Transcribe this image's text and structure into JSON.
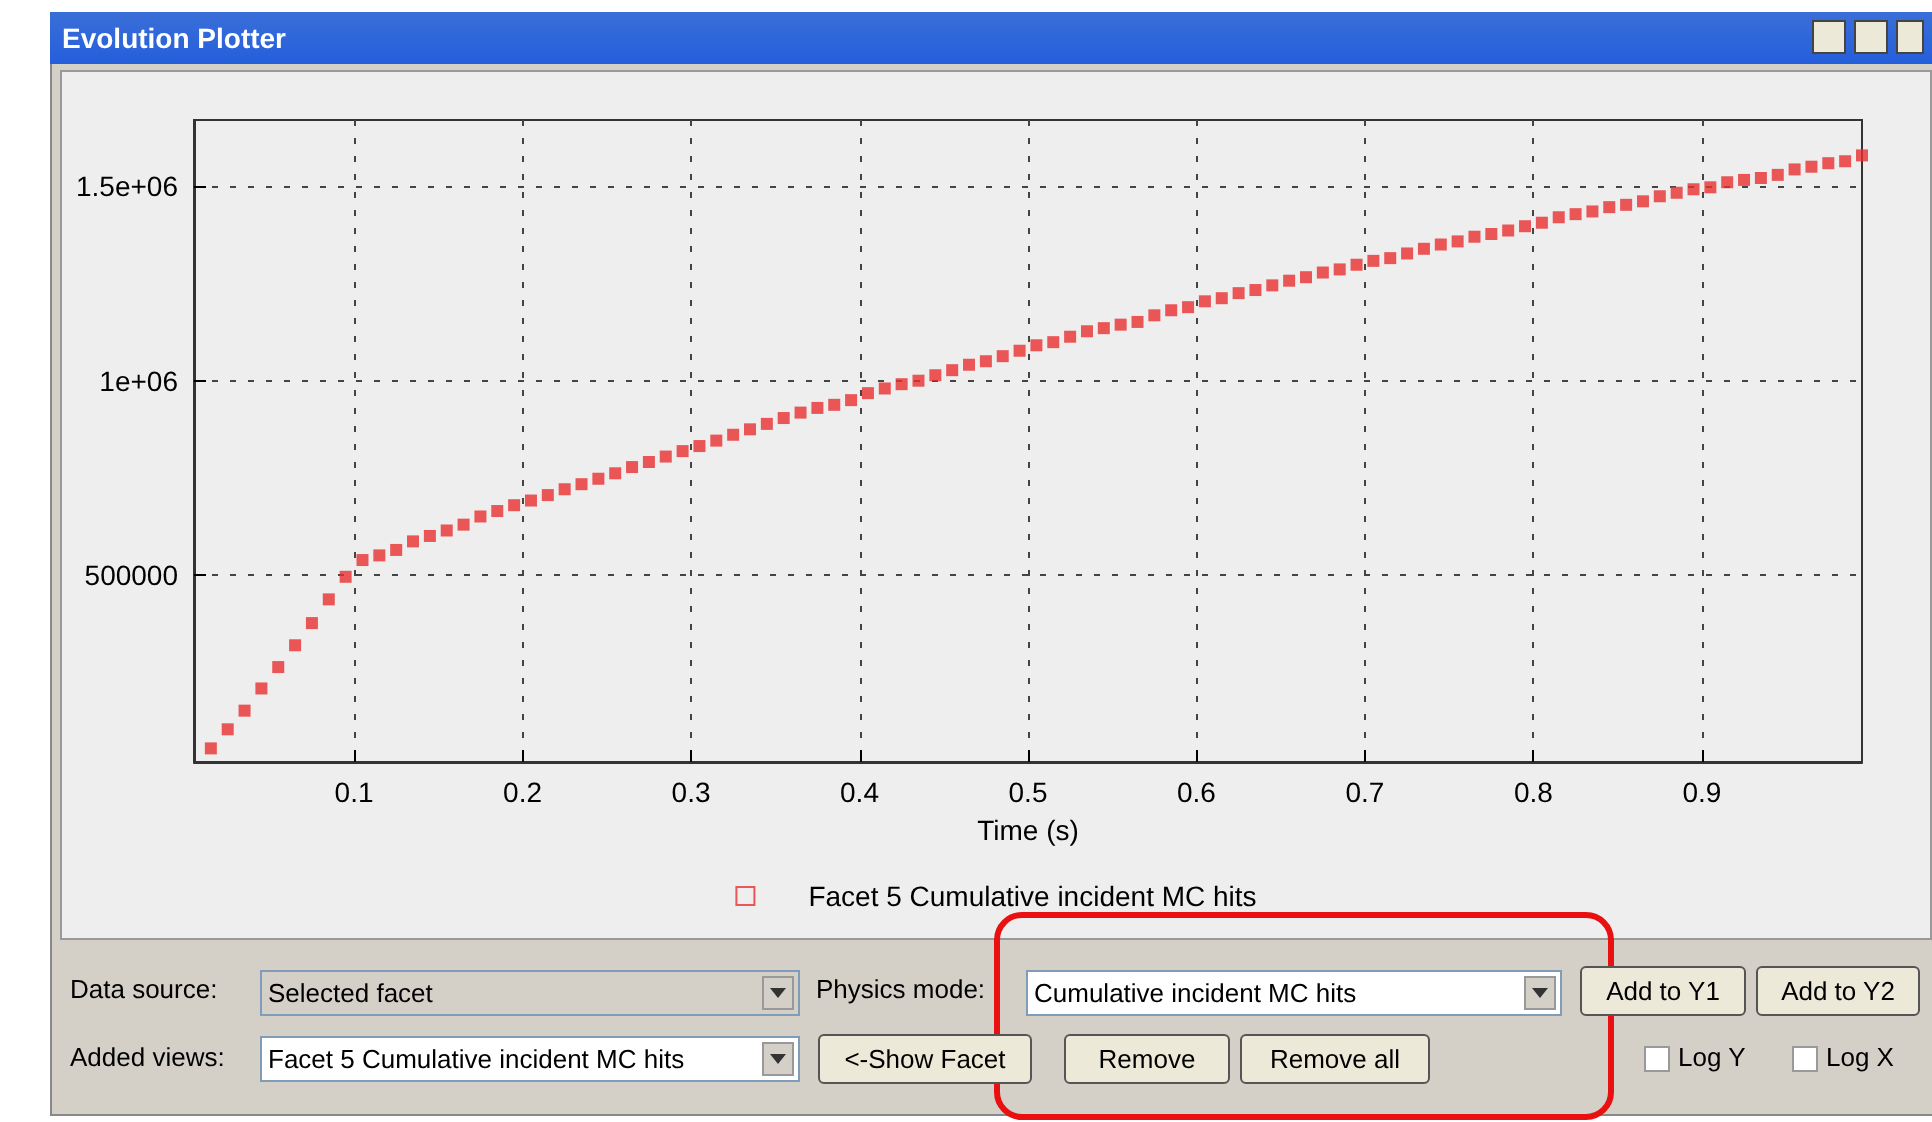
{
  "chart_data": {
    "type": "scatter",
    "title": "Evolution Plotter",
    "xlabel": "Time (s)",
    "x": [
      0.015,
      0.025,
      0.035,
      0.045,
      0.055,
      0.065,
      0.075,
      0.085,
      0.095,
      0.105,
      0.115,
      0.125,
      0.135,
      0.145,
      0.155,
      0.165,
      0.175,
      0.185,
      0.195,
      0.205,
      0.215,
      0.225,
      0.235,
      0.245,
      0.255,
      0.265,
      0.275,
      0.285,
      0.295,
      0.305,
      0.315,
      0.325,
      0.335,
      0.345,
      0.355,
      0.365,
      0.375,
      0.385,
      0.395,
      0.405,
      0.415,
      0.425,
      0.435,
      0.445,
      0.455,
      0.465,
      0.475,
      0.485,
      0.495,
      0.505,
      0.515,
      0.525,
      0.535,
      0.545,
      0.555,
      0.565,
      0.575,
      0.585,
      0.595,
      0.605,
      0.615,
      0.625,
      0.635,
      0.645,
      0.655,
      0.665,
      0.675,
      0.685,
      0.695,
      0.705,
      0.715,
      0.725,
      0.735,
      0.745,
      0.755,
      0.765,
      0.775,
      0.785,
      0.795,
      0.805,
      0.815,
      0.825,
      0.835,
      0.845,
      0.855,
      0.865,
      0.875,
      0.885,
      0.895,
      0.905,
      0.915,
      0.925,
      0.935,
      0.945,
      0.955,
      0.965,
      0.975,
      0.985,
      0.995
    ],
    "series": [
      {
        "name": "Facet 5 Cumulative incident MC hits",
        "color": "#e83030",
        "values": [
          55000,
          104000,
          152000,
          209000,
          264000,
          320000,
          377000,
          438000,
          496000,
          539000,
          551000,
          565000,
          587000,
          601000,
          615000,
          630000,
          651000,
          665000,
          680000,
          692000,
          706000,
          721000,
          734000,
          748000,
          762000,
          778000,
          791000,
          805000,
          819000,
          832000,
          846000,
          861000,
          875000,
          889000,
          904000,
          918000,
          930000,
          938000,
          950000,
          968000,
          980000,
          991000,
          1000000,
          1014000,
          1027000,
          1041000,
          1050000,
          1063000,
          1077000,
          1091000,
          1099000,
          1113000,
          1127000,
          1135000,
          1144000,
          1151000,
          1168000,
          1181000,
          1189000,
          1204000,
          1212000,
          1225000,
          1233000,
          1245000,
          1257000,
          1266000,
          1278000,
          1286000,
          1298000,
          1308000,
          1315000,
          1327000,
          1339000,
          1350000,
          1358000,
          1370000,
          1377000,
          1386000,
          1397000,
          1406000,
          1420000,
          1428000,
          1435000,
          1446000,
          1452000,
          1461000,
          1474000,
          1483000,
          1492000,
          1497000,
          1510000,
          1516000,
          1521000,
          1529000,
          1543000,
          1550000,
          1559000,
          1564000,
          1579000
        ]
      }
    ],
    "xlim": [
      0.005,
      0.995
    ],
    "xticks": [
      0.1,
      0.2,
      0.3,
      0.4,
      0.5,
      0.6,
      0.7,
      0.8,
      0.9
    ],
    "ylim": [
      20000,
      1670000
    ],
    "yticks": [
      {
        "value": 500000,
        "label": "500000"
      },
      {
        "value": 1000000,
        "label": "1e+06"
      },
      {
        "value": 1500000,
        "label": "1.5e+06"
      }
    ],
    "grid": true,
    "legend": "bottom",
    "marker": "square",
    "annotations": [
      "Data source:",
      "Selected facet",
      "Physics mode:",
      "Cumulative incident MC hits",
      "Add to Y1",
      "Add to Y2",
      "Added views:",
      "Facet 5 Cumulative incident MC hits",
      "<-Show Facet",
      "Remove",
      "Remove all",
      "Log Y",
      "Log X"
    ]
  }
}
